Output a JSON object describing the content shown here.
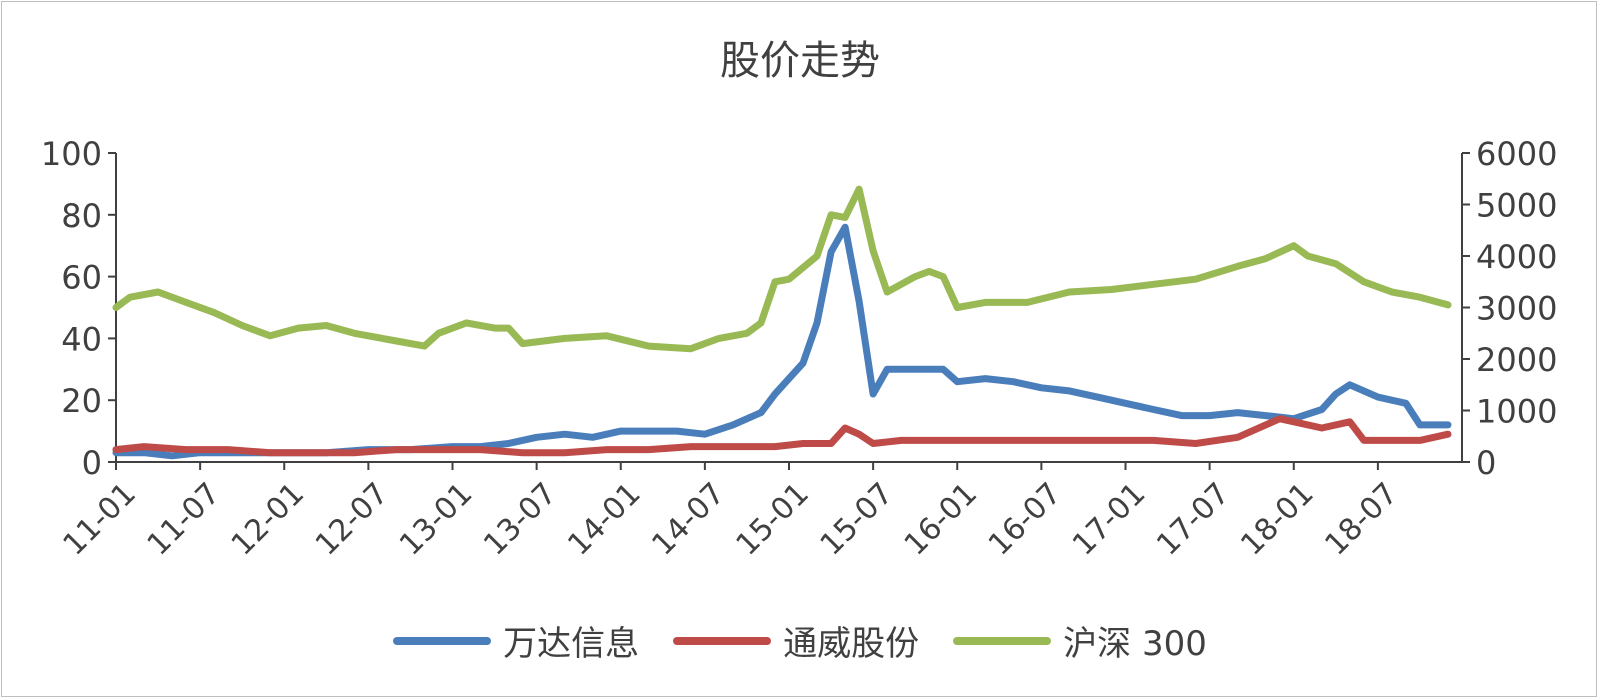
{
  "chart_data": {
    "type": "line",
    "title": "股价走势",
    "colors": {
      "wanda": "#4a7ebb",
      "tongwei": "#be4b48",
      "hs300": "#98b954",
      "axis": "#404040"
    },
    "x_tick_labels": [
      "11-01",
      "11-07",
      "12-01",
      "12-07",
      "13-01",
      "13-07",
      "14-01",
      "14-07",
      "15-01",
      "15-07",
      "16-01",
      "16-07",
      "17-01",
      "17-07",
      "18-01",
      "18-07"
    ],
    "y_left": {
      "ylim": [
        0,
        100
      ],
      "ticks": [
        0,
        20,
        40,
        60,
        80,
        100
      ]
    },
    "y_right": {
      "ylim": [
        0,
        6000
      ],
      "ticks": [
        0,
        1000,
        2000,
        3000,
        4000,
        5000,
        6000
      ]
    },
    "grid": false,
    "legend_position": "bottom",
    "series": [
      {
        "name": "万达信息",
        "axis": "left",
        "color": "#4a7ebb",
        "x": [
          "2011-01",
          "2011-03",
          "2011-05",
          "2011-07",
          "2011-10",
          "2012-01",
          "2012-04",
          "2012-07",
          "2012-10",
          "2013-01",
          "2013-03",
          "2013-05",
          "2013-07",
          "2013-09",
          "2013-11",
          "2014-01",
          "2014-03",
          "2014-05",
          "2014-07",
          "2014-09",
          "2014-11",
          "2014-12",
          "2015-02",
          "2015-03",
          "2015-04",
          "2015-05",
          "2015-06",
          "2015-07",
          "2015-08",
          "2015-10",
          "2015-12",
          "2016-01",
          "2016-03",
          "2016-05",
          "2016-07",
          "2016-09",
          "2016-11",
          "2017-01",
          "2017-03",
          "2017-05",
          "2017-07",
          "2017-09",
          "2017-11",
          "2018-01",
          "2018-03",
          "2018-04",
          "2018-05",
          "2018-07",
          "2018-09",
          "2018-10",
          "2018-12"
        ],
        "y": [
          3,
          3,
          2,
          3,
          3,
          3,
          3,
          4,
          4,
          5,
          5,
          6,
          8,
          9,
          8,
          10,
          10,
          10,
          9,
          12,
          16,
          22,
          32,
          45,
          68,
          76,
          52,
          22,
          30,
          30,
          30,
          26,
          27,
          26,
          24,
          23,
          21,
          19,
          17,
          15,
          15,
          16,
          15,
          14,
          17,
          22,
          25,
          21,
          19,
          12,
          12
        ]
      },
      {
        "name": "通威股份",
        "axis": "left",
        "color": "#be4b48",
        "x": [
          "2011-01",
          "2011-03",
          "2011-06",
          "2011-09",
          "2011-12",
          "2012-03",
          "2012-06",
          "2012-09",
          "2012-12",
          "2013-03",
          "2013-06",
          "2013-09",
          "2013-12",
          "2014-03",
          "2014-06",
          "2014-09",
          "2014-12",
          "2015-02",
          "2015-04",
          "2015-05",
          "2015-06",
          "2015-07",
          "2015-09",
          "2015-12",
          "2016-03",
          "2016-06",
          "2016-09",
          "2016-12",
          "2017-03",
          "2017-06",
          "2017-09",
          "2017-11",
          "2017-12",
          "2018-01",
          "2018-03",
          "2018-05",
          "2018-06",
          "2018-08",
          "2018-10",
          "2018-12"
        ],
        "y": [
          4,
          5,
          4,
          4,
          3,
          3,
          3,
          4,
          4,
          4,
          3,
          3,
          4,
          4,
          5,
          5,
          5,
          6,
          6,
          11,
          9,
          6,
          7,
          7,
          7,
          7,
          7,
          7,
          7,
          6,
          8,
          12,
          14,
          13,
          11,
          13,
          7,
          7,
          7,
          9
        ]
      },
      {
        "name": "沪深 300",
        "axis": "right",
        "color": "#98b954",
        "x": [
          "2011-01",
          "2011-02",
          "2011-04",
          "2011-06",
          "2011-08",
          "2011-10",
          "2011-12",
          "2012-02",
          "2012-04",
          "2012-06",
          "2012-09",
          "2012-11",
          "2012-12",
          "2013-02",
          "2013-04",
          "2013-05",
          "2013-06",
          "2013-09",
          "2013-12",
          "2014-03",
          "2014-06",
          "2014-08",
          "2014-10",
          "2014-11",
          "2014-12",
          "2015-01",
          "2015-03",
          "2015-04",
          "2015-05",
          "2015-06",
          "2015-07",
          "2015-08",
          "2015-10",
          "2015-11",
          "2015-12",
          "2016-01",
          "2016-03",
          "2016-06",
          "2016-09",
          "2016-12",
          "2017-03",
          "2017-06",
          "2017-09",
          "2017-11",
          "2018-01",
          "2018-02",
          "2018-04",
          "2018-06",
          "2018-08",
          "2018-10",
          "2018-12"
        ],
        "y": [
          3000,
          3200,
          3300,
          3100,
          2900,
          2650,
          2450,
          2600,
          2650,
          2500,
          2350,
          2250,
          2500,
          2700,
          2600,
          2600,
          2300,
          2400,
          2450,
          2250,
          2200,
          2400,
          2500,
          2700,
          3500,
          3550,
          4000,
          4800,
          4750,
          5300,
          4100,
          3300,
          3600,
          3700,
          3600,
          3000,
          3100,
          3100,
          3300,
          3350,
          3450,
          3550,
          3800,
          3950,
          4200,
          4000,
          3850,
          3500,
          3300,
          3200,
          3050
        ]
      }
    ]
  }
}
